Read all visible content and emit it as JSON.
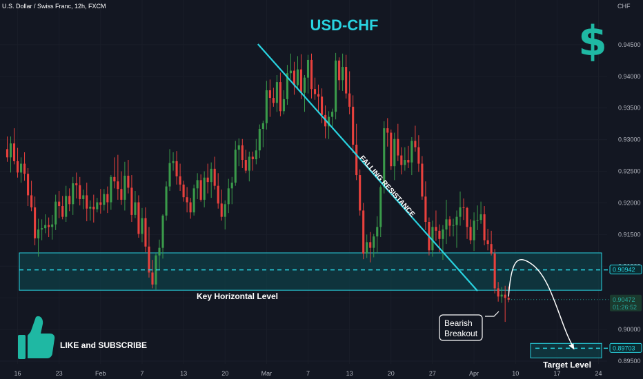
{
  "chart_data": {
    "type": "candlestick",
    "header": "U.S. Dollar / Swiss Franc, 12h, FXCM",
    "title": "USD-CHF",
    "currency_symbol": "$",
    "ylabel": "CHF",
    "ylim": [
      0.895,
      0.95
    ],
    "yticks": [
      0.895,
      0.9,
      0.905,
      0.91,
      0.915,
      0.92,
      0.925,
      0.93,
      0.935,
      0.94,
      0.945
    ],
    "ytick_labels": [
      "0.89500",
      "0.90000",
      "0.90500",
      "0.91000",
      "0.91500",
      "0.92000",
      "0.92500",
      "0.93000",
      "0.93500",
      "0.94000",
      "0.94500"
    ],
    "xticks": [
      "16",
      "23",
      "Feb",
      "7",
      "13",
      "20",
      "Mar",
      "7",
      "13",
      "20",
      "27",
      "Apr",
      "10",
      "17",
      "24"
    ],
    "xtick_pos": [
      3,
      15,
      27,
      39,
      51,
      63,
      75,
      87,
      99,
      111,
      123,
      135,
      147,
      159,
      171
    ],
    "n_slots": 174,
    "candles": [
      [
        0.9285,
        0.9305,
        0.9265,
        0.9272
      ],
      [
        0.9272,
        0.9305,
        0.9248,
        0.9294
      ],
      [
        0.9294,
        0.9318,
        0.9261,
        0.9266
      ],
      [
        0.9266,
        0.9287,
        0.924,
        0.9248
      ],
      [
        0.9248,
        0.9272,
        0.9232,
        0.9262
      ],
      [
        0.9262,
        0.928,
        0.9235,
        0.9246
      ],
      [
        0.9246,
        0.9255,
        0.9195,
        0.9212
      ],
      [
        0.9212,
        0.9235,
        0.9187,
        0.9193
      ],
      [
        0.9193,
        0.921,
        0.9133,
        0.9144
      ],
      [
        0.9144,
        0.9175,
        0.9115,
        0.9158
      ],
      [
        0.9158,
        0.9174,
        0.9141,
        0.916
      ],
      [
        0.916,
        0.9182,
        0.9152,
        0.9165
      ],
      [
        0.9165,
        0.9177,
        0.9146,
        0.9162
      ],
      [
        0.9162,
        0.9181,
        0.9142,
        0.9166
      ],
      [
        0.9166,
        0.9213,
        0.9157,
        0.9202
      ],
      [
        0.9202,
        0.9219,
        0.9176,
        0.9195
      ],
      [
        0.9195,
        0.9211,
        0.9174,
        0.9178
      ],
      [
        0.9178,
        0.9227,
        0.917,
        0.9211
      ],
      [
        0.9211,
        0.9223,
        0.9187,
        0.9198
      ],
      [
        0.9198,
        0.9241,
        0.9181,
        0.9231
      ],
      [
        0.9231,
        0.9248,
        0.9207,
        0.9228
      ],
      [
        0.9228,
        0.9241,
        0.9196,
        0.9206
      ],
      [
        0.9206,
        0.9221,
        0.919,
        0.9212
      ],
      [
        0.9212,
        0.9232,
        0.9171,
        0.9191
      ],
      [
        0.9191,
        0.9204,
        0.9172,
        0.9194
      ],
      [
        0.9194,
        0.9213,
        0.9169,
        0.919
      ],
      [
        0.919,
        0.9208,
        0.9185,
        0.9201
      ],
      [
        0.9201,
        0.9222,
        0.9183,
        0.9197
      ],
      [
        0.9197,
        0.9222,
        0.9188,
        0.9214
      ],
      [
        0.9214,
        0.9226,
        0.9184,
        0.9201
      ],
      [
        0.9201,
        0.9244,
        0.9189,
        0.9241
      ],
      [
        0.9241,
        0.9272,
        0.9223,
        0.9234
      ],
      [
        0.9234,
        0.9276,
        0.9205,
        0.9222
      ],
      [
        0.9222,
        0.925,
        0.9197,
        0.9205
      ],
      [
        0.9205,
        0.9265,
        0.9188,
        0.9243
      ],
      [
        0.9243,
        0.9268,
        0.9215,
        0.9224
      ],
      [
        0.9224,
        0.9244,
        0.917,
        0.9181
      ],
      [
        0.9181,
        0.9219,
        0.9176,
        0.9201
      ],
      [
        0.9201,
        0.9212,
        0.9145,
        0.9151
      ],
      [
        0.9151,
        0.9192,
        0.9138,
        0.9176
      ],
      [
        0.9176,
        0.9193,
        0.9122,
        0.9131
      ],
      [
        0.9131,
        0.9162,
        0.9082,
        0.909
      ],
      [
        0.909,
        0.911,
        0.9065,
        0.9071
      ],
      [
        0.9071,
        0.9121,
        0.9063,
        0.9117
      ],
      [
        0.9117,
        0.9142,
        0.9094,
        0.9129
      ],
      [
        0.9129,
        0.9182,
        0.9112,
        0.918
      ],
      [
        0.918,
        0.9234,
        0.9172,
        0.9226
      ],
      [
        0.9226,
        0.9285,
        0.9219,
        0.9263
      ],
      [
        0.9263,
        0.928,
        0.9251,
        0.9266
      ],
      [
        0.9266,
        0.9282,
        0.9229,
        0.9242
      ],
      [
        0.9242,
        0.9262,
        0.9219,
        0.9229
      ],
      [
        0.9229,
        0.9235,
        0.9202,
        0.9209
      ],
      [
        0.9209,
        0.9225,
        0.9185,
        0.9201
      ],
      [
        0.9201,
        0.9208,
        0.9175,
        0.9185
      ],
      [
        0.9185,
        0.9229,
        0.918,
        0.9223
      ],
      [
        0.9223,
        0.9247,
        0.9206,
        0.9236
      ],
      [
        0.9236,
        0.9245,
        0.9202,
        0.9205
      ],
      [
        0.9205,
        0.925,
        0.9193,
        0.924
      ],
      [
        0.924,
        0.9262,
        0.9215,
        0.9233
      ],
      [
        0.9233,
        0.9264,
        0.9208,
        0.9254
      ],
      [
        0.9254,
        0.9273,
        0.9221,
        0.9227
      ],
      [
        0.9227,
        0.9247,
        0.9191,
        0.9199
      ],
      [
        0.9199,
        0.9221,
        0.9172,
        0.9178
      ],
      [
        0.9178,
        0.9204,
        0.9158,
        0.9198
      ],
      [
        0.9198,
        0.9238,
        0.9184,
        0.9223
      ],
      [
        0.9223,
        0.9241,
        0.9198,
        0.9232
      ],
      [
        0.9232,
        0.9298,
        0.9227,
        0.9284
      ],
      [
        0.9284,
        0.9302,
        0.9258,
        0.9291
      ],
      [
        0.9291,
        0.9301,
        0.9255,
        0.9268
      ],
      [
        0.9268,
        0.9284,
        0.9247,
        0.9251
      ],
      [
        0.9251,
        0.9281,
        0.9234,
        0.9273
      ],
      [
        0.9273,
        0.9281,
        0.9251,
        0.9269
      ],
      [
        0.9269,
        0.9301,
        0.9261,
        0.9283
      ],
      [
        0.9283,
        0.9324,
        0.9271,
        0.9317
      ],
      [
        0.9317,
        0.933,
        0.9288,
        0.9326
      ],
      [
        0.9326,
        0.9393,
        0.9316,
        0.9378
      ],
      [
        0.9378,
        0.9395,
        0.9336,
        0.9366
      ],
      [
        0.9366,
        0.9382,
        0.9352,
        0.9358
      ],
      [
        0.9358,
        0.9402,
        0.9344,
        0.9391
      ],
      [
        0.9391,
        0.9406,
        0.9337,
        0.9345
      ],
      [
        0.9345,
        0.9378,
        0.934,
        0.9364
      ],
      [
        0.9364,
        0.9418,
        0.9355,
        0.9405
      ],
      [
        0.9405,
        0.9436,
        0.9396,
        0.9409
      ],
      [
        0.9409,
        0.9423,
        0.9371,
        0.9386
      ],
      [
        0.9386,
        0.9432,
        0.9379,
        0.9411
      ],
      [
        0.9411,
        0.9435,
        0.9364,
        0.9374
      ],
      [
        0.9374,
        0.9402,
        0.9344,
        0.9398
      ],
      [
        0.9398,
        0.9434,
        0.9373,
        0.9426
      ],
      [
        0.9426,
        0.9436,
        0.9365,
        0.938
      ],
      [
        0.938,
        0.9398,
        0.9363,
        0.9372
      ],
      [
        0.9372,
        0.9387,
        0.9342,
        0.9368
      ],
      [
        0.9368,
        0.9381,
        0.9326,
        0.9339
      ],
      [
        0.9339,
        0.9354,
        0.9302,
        0.9321
      ],
      [
        0.9321,
        0.9345,
        0.9301,
        0.9336
      ],
      [
        0.9336,
        0.9349,
        0.9319,
        0.9344
      ],
      [
        0.9344,
        0.9437,
        0.9332,
        0.9425
      ],
      [
        0.9425,
        0.943,
        0.9378,
        0.9394
      ],
      [
        0.9394,
        0.9436,
        0.9377,
        0.9415
      ],
      [
        0.9415,
        0.9434,
        0.9365,
        0.9373
      ],
      [
        0.9373,
        0.9408,
        0.934,
        0.9352
      ],
      [
        0.9352,
        0.937,
        0.9279,
        0.9292
      ],
      [
        0.9292,
        0.9325,
        0.9236,
        0.9244
      ],
      [
        0.9244,
        0.9253,
        0.918,
        0.9188
      ],
      [
        0.9188,
        0.92,
        0.9111,
        0.912
      ],
      [
        0.912,
        0.915,
        0.9113,
        0.9138
      ],
      [
        0.9138,
        0.9154,
        0.9106,
        0.9129
      ],
      [
        0.9129,
        0.9151,
        0.9114,
        0.9147
      ],
      [
        0.9147,
        0.9179,
        0.912,
        0.9162
      ],
      [
        0.9162,
        0.9228,
        0.9146,
        0.9225
      ],
      [
        0.9225,
        0.9329,
        0.9215,
        0.9318
      ],
      [
        0.9318,
        0.9334,
        0.9289,
        0.9311
      ],
      [
        0.9311,
        0.9316,
        0.9252,
        0.9258
      ],
      [
        0.9258,
        0.9311,
        0.9236,
        0.9301
      ],
      [
        0.9301,
        0.9325,
        0.9266,
        0.9275
      ],
      [
        0.9275,
        0.9288,
        0.9245,
        0.926
      ],
      [
        0.926,
        0.9288,
        0.9251,
        0.9268
      ],
      [
        0.9268,
        0.929,
        0.9255,
        0.9264
      ],
      [
        0.9264,
        0.9304,
        0.9244,
        0.9298
      ],
      [
        0.9298,
        0.9322,
        0.9281,
        0.9288
      ],
      [
        0.9288,
        0.9307,
        0.9249,
        0.9262
      ],
      [
        0.9262,
        0.9274,
        0.9205,
        0.921
      ],
      [
        0.921,
        0.9234,
        0.9157,
        0.917
      ],
      [
        0.917,
        0.9177,
        0.9117,
        0.9125
      ],
      [
        0.9125,
        0.9172,
        0.9115,
        0.9162
      ],
      [
        0.9162,
        0.9188,
        0.914,
        0.9156
      ],
      [
        0.9156,
        0.9166,
        0.9122,
        0.9143
      ],
      [
        0.9143,
        0.9165,
        0.911,
        0.9158
      ],
      [
        0.9158,
        0.9205,
        0.9135,
        0.9174
      ],
      [
        0.9174,
        0.9179,
        0.9147,
        0.9164
      ],
      [
        0.9164,
        0.9175,
        0.9147,
        0.9165
      ],
      [
        0.9165,
        0.9188,
        0.9129,
        0.9178
      ],
      [
        0.9178,
        0.9218,
        0.9164,
        0.9193
      ],
      [
        0.9193,
        0.9207,
        0.9173,
        0.9192
      ],
      [
        0.9192,
        0.9194,
        0.9143,
        0.9162
      ],
      [
        0.9162,
        0.9174,
        0.9135,
        0.9141
      ],
      [
        0.9141,
        0.9185,
        0.9124,
        0.9172
      ],
      [
        0.9172,
        0.9196,
        0.9157,
        0.9173
      ],
      [
        0.9173,
        0.9202,
        0.9167,
        0.9182
      ],
      [
        0.9182,
        0.9195,
        0.9133,
        0.9141
      ],
      [
        0.9141,
        0.9159,
        0.9125,
        0.9135
      ],
      [
        0.9135,
        0.9156,
        0.9117,
        0.912
      ],
      [
        0.912,
        0.9127,
        0.9057,
        0.9065
      ],
      [
        0.9065,
        0.9075,
        0.9044,
        0.9052
      ],
      [
        0.9052,
        0.9067,
        0.9042,
        0.9055
      ],
      [
        0.9055,
        0.9069,
        0.9012,
        0.905
      ],
      [
        0.905,
        0.9068,
        0.9043,
        0.9047
      ]
    ],
    "current_price": 0.90472,
    "current_price_label": "0.90472",
    "countdown": "01:26:52",
    "key_level_price": 0.90942,
    "key_level_label": "0.90942",
    "key_zone": [
      0.9062,
      0.9121
    ],
    "key_zone_label": "Key Horizontal Level",
    "target_price": 0.89703,
    "target_label": "0.89703",
    "target_zone": [
      0.8955,
      0.8978
    ],
    "target_zone_label": "Target Level",
    "resistance_label": "FALLING RESISTANCE",
    "resistance_line": [
      [
        72.5,
        0.9451
      ],
      [
        136,
        0.9061
      ]
    ],
    "breakout_label": [
      "Bearish",
      "Breakout"
    ],
    "projection": [
      [
        145,
        0.9052
      ],
      [
        151.5,
        0.9104
      ],
      [
        164,
        0.8968
      ]
    ],
    "cta_text": "LIKE and SUBSCRIBE",
    "cta_icon": "thumbs-up-icon",
    "colors": {
      "background": "#131722",
      "bull": "#26a69a",
      "bear": "#ef5350",
      "bull_candle": "#3a9a4a",
      "bear_candle": "#e8413d",
      "accent": "#29d3e0",
      "zone_fill": "#0f3d46",
      "grid": "#1e2230",
      "axis_text": "#b2b5be"
    }
  }
}
